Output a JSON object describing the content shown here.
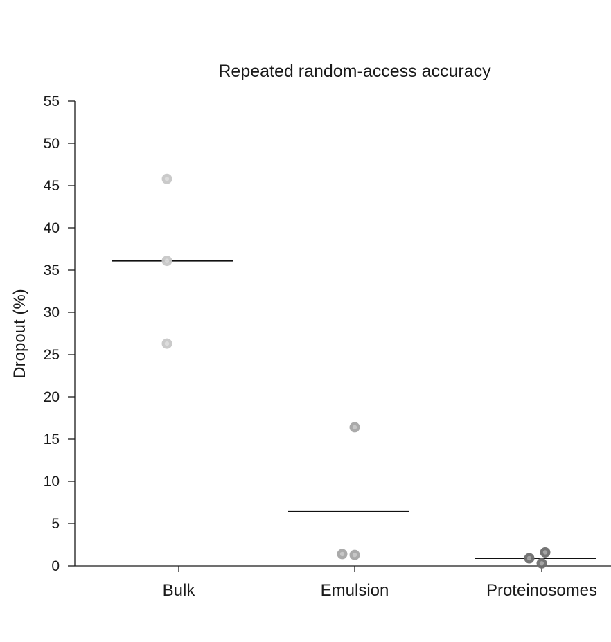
{
  "chart_data": {
    "type": "scatter",
    "title": "Repeated random-access accuracy",
    "ylabel": "Dropout (%)",
    "xlabel": "",
    "ylim": [
      0,
      55
    ],
    "yticks": [
      0,
      5,
      10,
      15,
      20,
      25,
      30,
      35,
      40,
      45,
      50,
      55
    ],
    "ytick_labels": [
      "0",
      "5",
      "10",
      "15",
      "20",
      "25",
      "30",
      "35",
      "40",
      "45",
      "50",
      "55"
    ],
    "categories": [
      "Bulk",
      "Emulsion",
      "Proteinosomes"
    ],
    "grid": false,
    "groups": [
      {
        "category": "Bulk",
        "points": [
          45.8,
          36.1,
          26.3
        ],
        "mean": 36.1,
        "color": "#c8c8c8"
      },
      {
        "category": "Emulsion",
        "points": [
          16.4,
          1.4,
          1.3
        ],
        "mean": 6.4,
        "color": "#a6a6a6"
      },
      {
        "category": "Proteinosomes",
        "points": [
          0.9,
          1.6,
          0.3
        ],
        "mean": 0.9,
        "color": "#6e6e6e"
      }
    ]
  }
}
